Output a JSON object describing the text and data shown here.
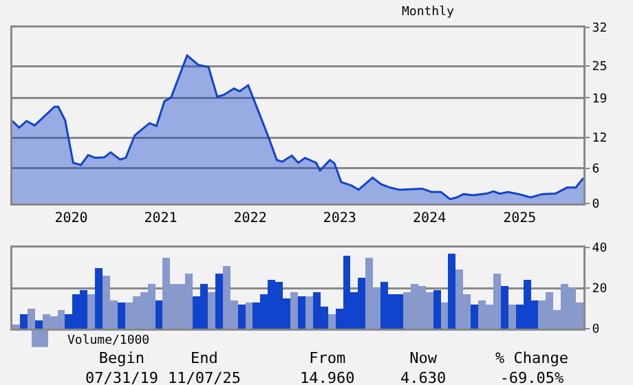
{
  "chart_data": [
    {
      "type": "area",
      "subtitle": "Monthly",
      "x": [
        "2019-07-31",
        "2019-08-27",
        "2019-09-26",
        "2019-10-28",
        "2019-12-03",
        "2020-01-16",
        "2020-01-31",
        "2020-02-28",
        "2020-03-15",
        "2020-03-31",
        "2020-05-01",
        "2020-05-30",
        "2020-06-28",
        "2020-08-03",
        "2020-08-28",
        "2020-10-05",
        "2020-10-28",
        "2020-12-03",
        "2021-01-31",
        "2021-02-28",
        "2021-04-01",
        "2021-04-28",
        "2021-06-03",
        "2021-07-01",
        "2021-08-15",
        "2021-09-25",
        "2021-10-30",
        "2021-11-27",
        "2022-01-05",
        "2022-01-28",
        "2022-03-03",
        "2022-04-04",
        "2022-05-24",
        "2022-06-26",
        "2022-07-17",
        "2022-08-25",
        "2022-09-20",
        "2022-10-17",
        "2022-12-01",
        "2022-12-16",
        "2023-01-25",
        "2023-02-12",
        "2023-03-11",
        "2023-04-20",
        "2023-05-20",
        "2023-07-15",
        "2023-08-18",
        "2023-09-23",
        "2023-10-30",
        "2024-01-30",
        "2024-03-07",
        "2024-04-14",
        "2024-05-21",
        "2024-06-17",
        "2024-07-14",
        "2024-08-21",
        "2024-10-15",
        "2024-11-11",
        "2024-12-07",
        "2025-01-07",
        "2025-02-21",
        "2025-04-09",
        "2025-05-25",
        "2025-07-18",
        "2025-09-02",
        "2025-10-07",
        "2025-11-07"
      ],
      "series": [
        {
          "color": "#1144cc",
          "values": [
            15.0,
            13.8,
            15.0,
            14.2,
            15.7,
            17.6,
            17.6,
            15.1,
            11.2,
            7.4,
            7.0,
            8.8,
            8.3,
            8.4,
            9.3,
            8.0,
            8.3,
            12.4,
            14.6,
            14.1,
            18.6,
            19.3,
            23.6,
            26.9,
            25.2,
            24.8,
            19.4,
            19.8,
            20.9,
            20.4,
            21.5,
            17.8,
            12.0,
            7.9,
            7.6,
            8.7,
            7.4,
            8.3,
            7.4,
            6.0,
            7.9,
            7.3,
            3.9,
            3.3,
            2.5,
            4.7,
            3.5,
            2.9,
            2.5,
            2.7,
            2.1,
            2.1,
            0.8,
            1.1,
            1.7,
            1.5,
            1.8,
            2.2,
            1.8,
            2.1,
            1.7,
            1.1,
            1.7,
            1.8,
            2.9,
            2.9,
            4.63
          ]
        }
      ],
      "xlim": [
        "2019-07-31",
        "2025-11-07"
      ],
      "xticks": [
        {
          "value": "2020-03-23",
          "label": "2020"
        },
        {
          "value": "2021-03-17",
          "label": "2021"
        },
        {
          "value": "2022-03-11",
          "label": "2022"
        },
        {
          "value": "2023-03-05",
          "label": "2023"
        },
        {
          "value": "2024-02-28",
          "label": "2024"
        },
        {
          "value": "2025-02-24",
          "label": "2025"
        }
      ],
      "ylim": [
        0,
        32
      ],
      "yticks": [
        0,
        {
          "value": 6.4,
          "label": "6"
        },
        12,
        {
          "value": 19.2,
          "label": "19"
        },
        25,
        32
      ],
      "grid": "y"
    },
    {
      "type": "bar",
      "categories": [
        null,
        null,
        null,
        null,
        null,
        null,
        null,
        null,
        null,
        null,
        null,
        null,
        null,
        null,
        null,
        null,
        null,
        null,
        null,
        null,
        null,
        null,
        null,
        null,
        null,
        null,
        null,
        null,
        null,
        null,
        null,
        null,
        null,
        null,
        null,
        null,
        null,
        null,
        null,
        null,
        null,
        null,
        null,
        null,
        null,
        null,
        null,
        null,
        null,
        null,
        null,
        null,
        null,
        null,
        null,
        null,
        null,
        null,
        null,
        null,
        null,
        null,
        null,
        null,
        null,
        null,
        null,
        null,
        null,
        null,
        null,
        null,
        null,
        null,
        null,
        null
      ],
      "series": [
        {
          "name": "Volume/1000",
          "color": "#8899cc",
          "colors": [
            "#8899cc",
            "#1144cc",
            "#8899cc",
            "#1144cc",
            "#8899cc",
            "#8899cc",
            "#8899cc",
            "#1144cc",
            "#1144cc",
            "#1144cc",
            "#8899cc",
            "#1144cc",
            "#8899cc",
            "#8899cc",
            "#1144cc",
            "#8899cc",
            "#8899cc",
            "#8899cc",
            "#8899cc",
            "#1144cc",
            "#8899cc",
            "#8899cc",
            "#8899cc",
            "#8899cc",
            "#1144cc",
            "#1144cc",
            "#8899cc",
            "#1144cc",
            "#8899cc",
            "#8899cc",
            "#1144cc",
            "#8899cc",
            "#1144cc",
            "#1144cc",
            "#1144cc",
            "#1144cc",
            "#1144cc",
            "#8899cc",
            "#1144cc",
            "#8899cc",
            "#1144cc",
            "#1144cc",
            "#8899cc",
            "#1144cc",
            "#1144cc",
            "#1144cc",
            "#1144cc",
            "#8899cc",
            "#8899cc",
            "#1144cc",
            "#1144cc",
            "#1144cc",
            "#8899cc",
            "#8899cc",
            "#8899cc",
            "#8899cc",
            "#1144cc",
            "#8899cc",
            "#1144cc",
            "#8899cc",
            "#8899cc",
            "#1144cc",
            "#8899cc",
            "#8899cc",
            "#8899cc",
            "#1144cc",
            "#8899cc",
            "#1144cc",
            "#1144cc",
            "#1144cc",
            "#8899cc",
            "#8899cc",
            "#8899cc",
            "#8899cc",
            "#8899cc",
            "#8899cc"
          ],
          "values": [
            2,
            7,
            10,
            4,
            7,
            6,
            9,
            7,
            17,
            19,
            17,
            30,
            26,
            14,
            13,
            13,
            16,
            18,
            22,
            14,
            35,
            22,
            22,
            27,
            16,
            22,
            18,
            27,
            31,
            14,
            12,
            13,
            13,
            17,
            24,
            23,
            15,
            18,
            16,
            16,
            18,
            11,
            7,
            10,
            36,
            18,
            25,
            35,
            20,
            23,
            17,
            17,
            18,
            22,
            21,
            18,
            19,
            13,
            37,
            29,
            17,
            12,
            14,
            12,
            27,
            21,
            12,
            12,
            24,
            14,
            14,
            18,
            9,
            22,
            20,
            13
          ]
        }
      ],
      "ylim": [
        0,
        40
      ],
      "yticks": [
        0,
        20,
        40
      ],
      "grid": "y",
      "legend": "bottom left",
      "tick_labels": "y",
      "annotations": [
        "Begin\n07/31/19",
        "End\n11/07/25",
        "From\n14.960",
        "Now\n4.630",
        "% Change\n-69.05%"
      ]
    }
  ]
}
